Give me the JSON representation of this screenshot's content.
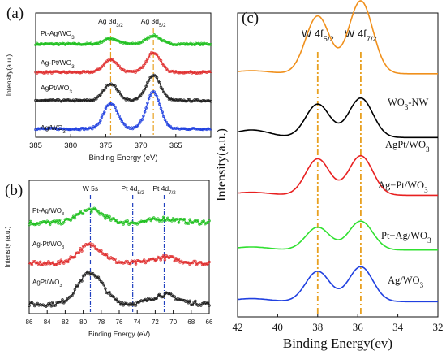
{
  "chart_data": [
    {
      "type": "scatter",
      "panel_label": "(a)",
      "xlabel": "Binding Energy (eV)",
      "ylabel": "Intensity(a.u.)",
      "xlim": [
        385,
        360
      ],
      "ylim": [
        0,
        4.4
      ],
      "xticks": [
        385,
        380,
        375,
        370,
        365
      ],
      "tick_labels": [
        "385",
        "380",
        "375",
        "370",
        "365"
      ],
      "reference_lines": [
        {
          "x": 374.3,
          "label_main": "Ag 3d",
          "label_sub": "3/2",
          "color": "#e8a020"
        },
        {
          "x": 368.2,
          "label_main": "Ag 3d",
          "label_sub": "5/2",
          "color": "#e8a020"
        }
      ],
      "series": [
        {
          "name": "Pt-Ag/WO",
          "name_sub": "3",
          "color": "#20c020",
          "baseline": 3.3,
          "peaks": [
            [
              374.3,
              0.2
            ],
            [
              368.2,
              0.3
            ]
          ]
        },
        {
          "name": "Ag-Pt/WO",
          "name_sub": "3",
          "color": "#e03030",
          "baseline": 2.3,
          "peaks": [
            [
              374.3,
              0.45
            ],
            [
              368.2,
              0.7
            ]
          ]
        },
        {
          "name": "AgPt/WO",
          "name_sub": "3",
          "color": "#202020",
          "baseline": 1.3,
          "peaks": [
            [
              374.3,
              0.6
            ],
            [
              368.2,
              0.9
            ]
          ]
        },
        {
          "name": "Ag/WO",
          "name_sub": "3",
          "color": "#2040e0",
          "baseline": 0.3,
          "peaks": [
            [
              374.3,
              0.9
            ],
            [
              368.2,
              1.3
            ]
          ]
        }
      ]
    },
    {
      "type": "scatter",
      "panel_label": "(b)",
      "xlabel": "Binding Energy (eV)",
      "ylabel": "Intensity (a.u.)",
      "xlim": [
        86,
        66
      ],
      "ylim": [
        0,
        3.6
      ],
      "xticks": [
        86,
        84,
        82,
        80,
        78,
        76,
        74,
        72,
        70,
        68,
        66
      ],
      "tick_labels": [
        "86",
        "84",
        "82",
        "80",
        "78",
        "76",
        "74",
        "72",
        "70",
        "68",
        "66"
      ],
      "reference_lines": [
        {
          "x": 79.2,
          "label_main": "W 5s",
          "label_sub": "",
          "color": "#2040c0"
        },
        {
          "x": 74.5,
          "label_main": "Pt 4d",
          "label_sub": "5/2",
          "color": "#2040c0"
        },
        {
          "x": 71.0,
          "label_main": "Pt 4d",
          "label_sub": "7/2",
          "color": "#2040c0"
        }
      ],
      "series": [
        {
          "name": "Pt-Ag/WO",
          "name_sub": "3",
          "color": "#20c020",
          "baseline": 2.45,
          "peaks": [
            [
              79.2,
              0.35
            ],
            [
              71.0,
              0.1
            ]
          ]
        },
        {
          "name": "Ag-Pt/WO",
          "name_sub": "3",
          "color": "#e03030",
          "baseline": 1.35,
          "peaks": [
            [
              79.2,
              0.5
            ],
            [
              71.0,
              0.15
            ]
          ]
        },
        {
          "name": "AgPt/WO",
          "name_sub": "3",
          "color": "#202020",
          "baseline": 0.25,
          "peaks": [
            [
              79.2,
              0.85
            ],
            [
              71.0,
              0.25
            ]
          ]
        }
      ]
    },
    {
      "type": "line",
      "panel_label": "(c)",
      "xlabel": "Binding Energy(ev)",
      "ylabel": "Intensity(a.u.)",
      "xlim": [
        42,
        32
      ],
      "ylim": [
        0,
        10
      ],
      "xticks": [
        42,
        40,
        38,
        36,
        34,
        32
      ],
      "tick_labels": [
        "42",
        "40",
        "38",
        "36",
        "34",
        "32"
      ],
      "reference_lines": [
        {
          "x": 38.0,
          "label_main": "W 4f",
          "label_sub": "5/2",
          "color": "#e8a020"
        },
        {
          "x": 35.85,
          "label_main": "W 4f",
          "label_sub": "7/2",
          "color": "#e8a020"
        }
      ],
      "series": [
        {
          "name": "WO",
          "name_sub": "3",
          "name_suffix": "-NW",
          "color": "#f0901c",
          "baseline": 8.0,
          "peaks": [
            [
              38.0,
              1.9
            ],
            [
              35.85,
              2.4
            ]
          ]
        },
        {
          "name": "AgPt/WO",
          "name_sub": "3",
          "name_suffix": "",
          "color": "#000000",
          "baseline": 5.9,
          "peaks": [
            [
              38.0,
              1.1
            ],
            [
              35.85,
              1.3
            ]
          ]
        },
        {
          "name": "Ag−Pt/WO",
          "name_sub": "3",
          "name_suffix": "",
          "color": "#e82020",
          "baseline": 4.0,
          "peaks": [
            [
              38.0,
              1.2
            ],
            [
              35.85,
              1.3
            ]
          ]
        },
        {
          "name": "Pt−Ag/WO",
          "name_sub": "3",
          "name_suffix": "",
          "color": "#30e030",
          "baseline": 2.2,
          "peaks": [
            [
              38.0,
              0.75
            ],
            [
              35.85,
              0.95
            ]
          ]
        },
        {
          "name": "Ag/WO",
          "name_sub": "3",
          "name_suffix": "",
          "color": "#2040e0",
          "baseline": 0.5,
          "peaks": [
            [
              38.0,
              1.0
            ],
            [
              35.85,
              1.15
            ]
          ]
        }
      ]
    }
  ]
}
